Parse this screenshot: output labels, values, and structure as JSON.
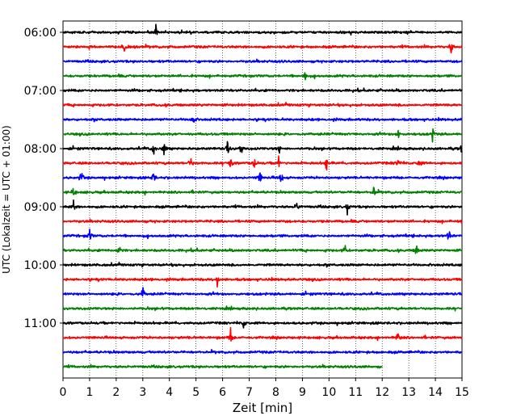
{
  "chart_data": {
    "type": "line",
    "title": "",
    "xlabel": "Zeit  [min]",
    "ylabel": "UTC (Lokalzeit = UTC + 01:00)",
    "xlim": [
      0,
      15
    ],
    "x_ticks": [
      0,
      1,
      2,
      3,
      4,
      5,
      6,
      7,
      8,
      9,
      10,
      11,
      12,
      13,
      14,
      15
    ],
    "x_tick_labels": [
      "0",
      "1",
      "2",
      "3",
      "4",
      "5",
      "6",
      "7",
      "8",
      "9",
      "10",
      "11",
      "12",
      "13",
      "14",
      "15"
    ],
    "y_tick_labels": [
      "06:00",
      "07:00",
      "08:00",
      "09:00",
      "10:00",
      "11:00"
    ],
    "rows_per_label": 4,
    "grid": "vertical dotted lines at each minute",
    "series_colors": [
      "#000000",
      "#ff0000",
      "#0000ff",
      "#008000"
    ],
    "traces": [
      {
        "start": "06:00",
        "end_min": 15,
        "events": [
          3.5
        ]
      },
      {
        "start": "06:15",
        "end_min": 15,
        "events": [
          2.3,
          14.6
        ]
      },
      {
        "start": "06:30",
        "end_min": 15,
        "events": []
      },
      {
        "start": "06:45",
        "end_min": 15,
        "events": [
          9.1
        ]
      },
      {
        "start": "07:00",
        "end_min": 15,
        "events": []
      },
      {
        "start": "07:15",
        "end_min": 15,
        "events": []
      },
      {
        "start": "07:30",
        "end_min": 15,
        "events": [
          4.9
        ]
      },
      {
        "start": "07:45",
        "end_min": 15,
        "events": [
          12.6,
          13.9
        ]
      },
      {
        "start": "08:00",
        "end_min": 15,
        "events": [
          3.4,
          3.8,
          6.2,
          6.7,
          8.1,
          15.0
        ]
      },
      {
        "start": "08:15",
        "end_min": 15,
        "events": [
          4.8,
          6.3,
          7.2,
          8.1,
          9.9,
          12.6,
          13.4
        ]
      },
      {
        "start": "08:30",
        "end_min": 15,
        "events": [
          0.7,
          3.4,
          7.4,
          8.2
        ]
      },
      {
        "start": "08:45",
        "end_min": 15,
        "events": [
          0.4,
          11.7
        ]
      },
      {
        "start": "09:00",
        "end_min": 15,
        "events": [
          0.4,
          8.8,
          10.7
        ]
      },
      {
        "start": "09:15",
        "end_min": 15,
        "events": [
          15.0
        ]
      },
      {
        "start": "09:30",
        "end_min": 15,
        "events": [
          1.0,
          14.5
        ]
      },
      {
        "start": "09:45",
        "end_min": 15,
        "events": [
          2.1,
          10.6,
          13.3
        ]
      },
      {
        "start": "10:00",
        "end_min": 15,
        "events": []
      },
      {
        "start": "10:15",
        "end_min": 15,
        "events": [
          5.8
        ]
      },
      {
        "start": "10:30",
        "end_min": 15,
        "events": [
          3.0
        ]
      },
      {
        "start": "10:45",
        "end_min": 15,
        "events": []
      },
      {
        "start": "11:00",
        "end_min": 15,
        "events": [
          6.8
        ]
      },
      {
        "start": "11:15",
        "end_min": 15,
        "events": [
          6.3,
          12.6
        ]
      },
      {
        "start": "11:30",
        "end_min": 15,
        "events": []
      },
      {
        "start": "11:45",
        "end_min": 12,
        "events": []
      }
    ]
  }
}
